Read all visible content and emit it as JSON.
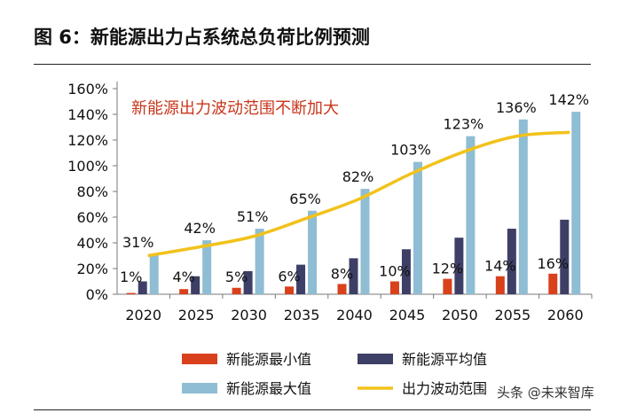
{
  "figure": {
    "title": "图 6：新能源出力占系统总负荷比例预测",
    "watermark": "头条 @未来智库"
  },
  "chart_data": {
    "type": "bar",
    "categories": [
      "2020",
      "2025",
      "2030",
      "2035",
      "2040",
      "2045",
      "2050",
      "2055",
      "2060"
    ],
    "series": [
      {
        "name": "新能源最小值",
        "color": "#d9401c",
        "values": [
          1,
          4,
          5,
          6,
          8,
          10,
          12,
          14,
          16
        ]
      },
      {
        "name": "新能源平均值",
        "color": "#3d3f66",
        "values": [
          10,
          14,
          18,
          23,
          28,
          35,
          44,
          51,
          58
        ]
      },
      {
        "name": "新能源最大值",
        "color": "#8fbdd3",
        "values": [
          31,
          42,
          51,
          65,
          82,
          103,
          123,
          136,
          142
        ]
      },
      {
        "name": "出力波动范围",
        "type": "line",
        "color": "#f2c21b",
        "values": [
          30,
          37,
          45,
          59,
          74,
          94,
          111,
          123,
          126
        ]
      }
    ],
    "data_labels": [
      "1%",
      "31%",
      "4%",
      "42%",
      "5%",
      "51%",
      "6%",
      "65%",
      "8%",
      "82%",
      "10%",
      "103%",
      "12%",
      "123%",
      "14%",
      "136%",
      "16%",
      "142%"
    ],
    "annotation": "新能源出力波动范围不断加大",
    "y_ticks": [
      "0%",
      "20%",
      "40%",
      "60%",
      "80%",
      "100%",
      "120%",
      "140%",
      "160%"
    ],
    "ylim": [
      0,
      160
    ],
    "xlabel": "",
    "ylabel": "",
    "legend_position": "bottom"
  }
}
